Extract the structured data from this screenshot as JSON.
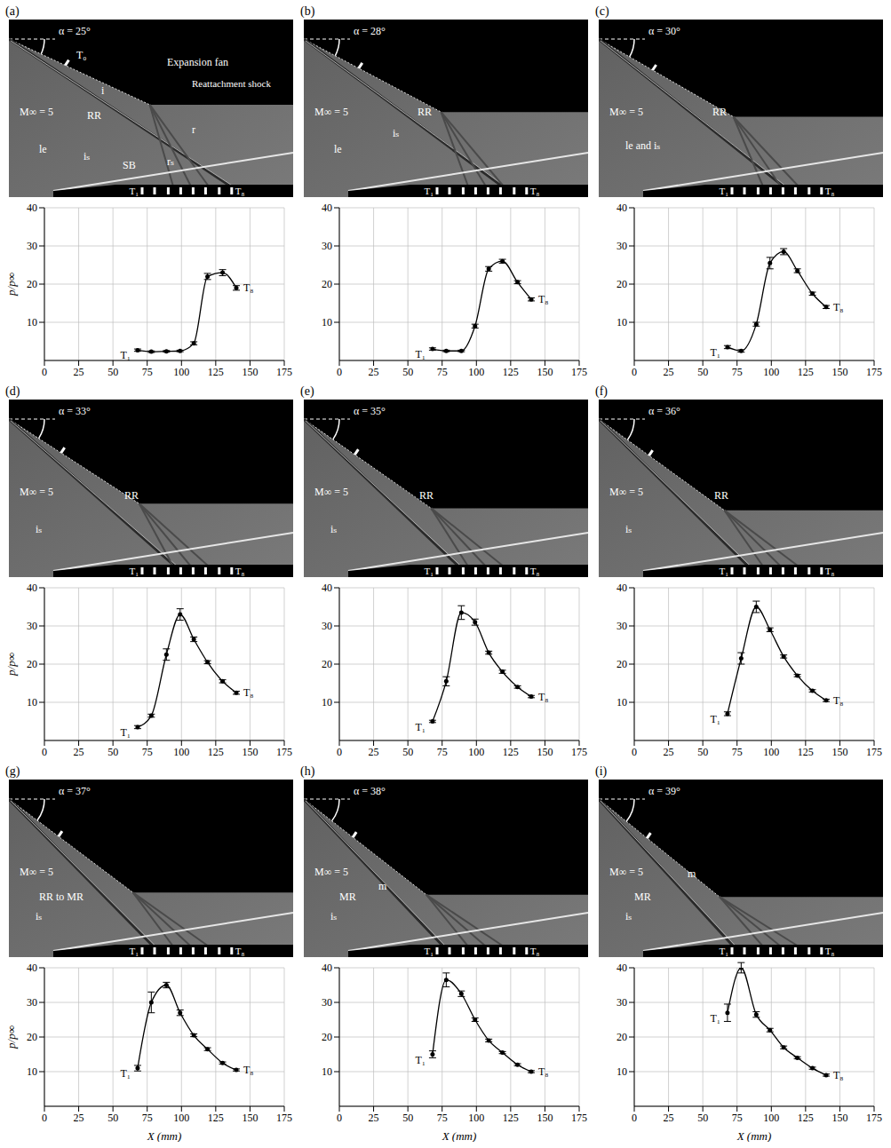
{
  "chart_data": [
    {
      "panel": "(a)",
      "type": "line",
      "alpha_label": "α = 25°",
      "image_labels": [
        "α = 25°",
        "T₀",
        "M∞ = 5",
        "i",
        "RR",
        "Expansion fan",
        "Reattachment shock",
        "r",
        "le",
        "iₛ",
        "SB",
        "rₛ"
      ],
      "x": [
        68,
        78,
        89,
        99,
        109,
        119,
        130,
        140
      ],
      "values": [
        2.7,
        2.3,
        2.4,
        2.5,
        4.5,
        22,
        23,
        19
      ],
      "errors": [
        0.3,
        0.2,
        0.2,
        0.2,
        0.4,
        0.8,
        0.8,
        0.6
      ],
      "point_labels": [
        "T₁",
        "T₈"
      ],
      "y_label": "p/p∞",
      "xlim": [
        0,
        175
      ],
      "xticks": [
        0,
        25,
        50,
        75,
        100,
        125,
        150,
        175
      ],
      "ylim": [
        0,
        40
      ],
      "yticks": [
        10,
        20,
        30,
        40
      ],
      "grid": true,
      "color": "#000000",
      "marker": "circle"
    },
    {
      "panel": "(b)",
      "type": "line",
      "alpha_label": "α = 28°",
      "image_labels": [
        "α = 28°",
        "M∞ = 5",
        "RR",
        "le",
        "iₛ"
      ],
      "x": [
        68,
        78,
        89,
        99,
        109,
        119,
        130,
        140
      ],
      "values": [
        3,
        2.5,
        2.5,
        9,
        24,
        26,
        20.5,
        16
      ],
      "errors": [
        0.3,
        0.2,
        0.2,
        0.5,
        0.6,
        0.5,
        0.4,
        0.4
      ],
      "point_labels": [
        "T₁",
        "T₈"
      ],
      "xlim": [
        0,
        175
      ],
      "xticks": [
        0,
        25,
        50,
        75,
        100,
        125,
        150,
        175
      ],
      "ylim": [
        0,
        40
      ],
      "yticks": [
        10,
        20,
        30,
        40
      ],
      "grid": true,
      "color": "#000000",
      "marker": "circle"
    },
    {
      "panel": "(c)",
      "type": "line",
      "alpha_label": "α = 30°",
      "image_labels": [
        "α = 30°",
        "M∞ = 5",
        "RR",
        "le and iₛ"
      ],
      "x": [
        68,
        78,
        89,
        99,
        109,
        119,
        130,
        140
      ],
      "values": [
        3.5,
        2.5,
        9.5,
        25.5,
        28.5,
        23.5,
        17.5,
        14
      ],
      "errors": [
        0.4,
        0.3,
        0.5,
        1.5,
        0.8,
        0.5,
        0.4,
        0.4
      ],
      "point_labels": [
        "T₁",
        "T₈"
      ],
      "xlim": [
        0,
        175
      ],
      "xticks": [
        0,
        25,
        50,
        75,
        100,
        125,
        150,
        175
      ],
      "ylim": [
        0,
        40
      ],
      "yticks": [
        10,
        20,
        30,
        40
      ],
      "grid": true,
      "color": "#000000",
      "marker": "circle"
    },
    {
      "panel": "(d)",
      "type": "line",
      "alpha_label": "α = 33°",
      "image_labels": [
        "α = 33°",
        "M∞ = 5",
        "RR",
        "iₛ"
      ],
      "x": [
        68,
        78,
        89,
        99,
        109,
        119,
        130,
        140
      ],
      "values": [
        3.5,
        6.5,
        22.5,
        33,
        26.5,
        20.5,
        15.5,
        12.5
      ],
      "errors": [
        0.4,
        0.4,
        1.5,
        1.5,
        0.6,
        0.4,
        0.4,
        0.4
      ],
      "point_labels": [
        "T₁",
        "T₈"
      ],
      "y_label": "p/p∞",
      "xlim": [
        0,
        175
      ],
      "xticks": [
        0,
        25,
        50,
        75,
        100,
        125,
        150,
        175
      ],
      "ylim": [
        0,
        40
      ],
      "yticks": [
        10,
        20,
        30,
        40
      ],
      "grid": true,
      "color": "#000000",
      "marker": "circle"
    },
    {
      "panel": "(e)",
      "type": "line",
      "alpha_label": "α = 35°",
      "image_labels": [
        "α = 35°",
        "M∞ = 5",
        "RR",
        "iₛ"
      ],
      "x": [
        68,
        78,
        89,
        99,
        109,
        119,
        130,
        140
      ],
      "values": [
        5,
        15.5,
        33.5,
        31,
        23,
        18,
        14,
        11.5
      ],
      "errors": [
        0.3,
        1.2,
        1.8,
        0.8,
        0.4,
        0.4,
        0.3,
        0.3
      ],
      "point_labels": [
        "T₁",
        "T₈"
      ],
      "xlim": [
        0,
        175
      ],
      "xticks": [
        0,
        25,
        50,
        75,
        100,
        125,
        150,
        175
      ],
      "ylim": [
        0,
        40
      ],
      "yticks": [
        10,
        20,
        30,
        40
      ],
      "grid": true,
      "color": "#000000",
      "marker": "circle"
    },
    {
      "panel": "(f)",
      "type": "line",
      "alpha_label": "α = 36°",
      "image_labels": [
        "α = 36°",
        "M∞ = 5",
        "RR",
        "iₛ"
      ],
      "x": [
        68,
        78,
        89,
        99,
        109,
        119,
        130,
        140
      ],
      "values": [
        7,
        21.5,
        35,
        29,
        22,
        17,
        13,
        10.5
      ],
      "errors": [
        0.5,
        1.5,
        1.5,
        0.5,
        0.4,
        0.3,
        0.3,
        0.3
      ],
      "point_labels": [
        "T₁",
        "T₈"
      ],
      "xlim": [
        0,
        175
      ],
      "xticks": [
        0,
        25,
        50,
        75,
        100,
        125,
        150,
        175
      ],
      "ylim": [
        0,
        40
      ],
      "yticks": [
        10,
        20,
        30,
        40
      ],
      "grid": true,
      "color": "#000000",
      "marker": "circle"
    },
    {
      "panel": "(g)",
      "type": "line",
      "alpha_label": "α = 37°",
      "image_labels": [
        "α = 37°",
        "M∞ = 5",
        "RR to MR",
        "iₛ"
      ],
      "x": [
        68,
        78,
        89,
        99,
        109,
        119,
        130,
        140
      ],
      "values": [
        11,
        30,
        35,
        27,
        20.5,
        16.5,
        12.5,
        10.5
      ],
      "errors": [
        0.8,
        3,
        0.8,
        0.8,
        0.4,
        0.4,
        0.3,
        0.3
      ],
      "point_labels": [
        "T₁",
        "T₈"
      ],
      "y_label": "p/p∞",
      "x_label": "X (mm)",
      "xlim": [
        0,
        175
      ],
      "xticks": [
        0,
        25,
        50,
        75,
        100,
        125,
        150,
        175
      ],
      "ylim": [
        0,
        40
      ],
      "yticks": [
        10,
        20,
        30,
        40
      ],
      "grid": true,
      "color": "#000000",
      "marker": "circle"
    },
    {
      "panel": "(h)",
      "type": "line",
      "alpha_label": "α = 38°",
      "image_labels": [
        "α = 38°",
        "M∞ = 5",
        "MR",
        "m",
        "iₛ"
      ],
      "x": [
        68,
        78,
        89,
        99,
        109,
        119,
        130,
        140
      ],
      "values": [
        15,
        36.5,
        32.5,
        25,
        19,
        15.5,
        12,
        10
      ],
      "errors": [
        1,
        2,
        0.8,
        0.5,
        0.4,
        0.3,
        0.3,
        0.3
      ],
      "point_labels": [
        "T₁",
        "T₈"
      ],
      "x_label": "X (mm)",
      "xlim": [
        0,
        175
      ],
      "xticks": [
        0,
        25,
        50,
        75,
        100,
        125,
        150,
        175
      ],
      "ylim": [
        0,
        40
      ],
      "yticks": [
        10,
        20,
        30,
        40
      ],
      "grid": true,
      "color": "#000000",
      "marker": "circle"
    },
    {
      "panel": "(i)",
      "type": "line",
      "alpha_label": "α = 39°",
      "image_labels": [
        "α = 39°",
        "M∞ = 5",
        "MR",
        "m",
        "iₛ"
      ],
      "x": [
        68,
        78,
        89,
        99,
        109,
        119,
        130,
        140
      ],
      "values": [
        27,
        40,
        26.5,
        22,
        17,
        14,
        11,
        9
      ],
      "errors": [
        2.5,
        1.5,
        0.8,
        0.5,
        0.4,
        0.3,
        0.3,
        0.3
      ],
      "point_labels": [
        "T₁",
        "T₈"
      ],
      "x_label": "X (mm)",
      "xlim": [
        0,
        175
      ],
      "xticks": [
        0,
        25,
        50,
        75,
        100,
        125,
        150,
        175
      ],
      "ylim": [
        0,
        40
      ],
      "yticks": [
        10,
        20,
        30,
        40
      ],
      "grid": true,
      "color": "#000000",
      "marker": "circle"
    }
  ]
}
